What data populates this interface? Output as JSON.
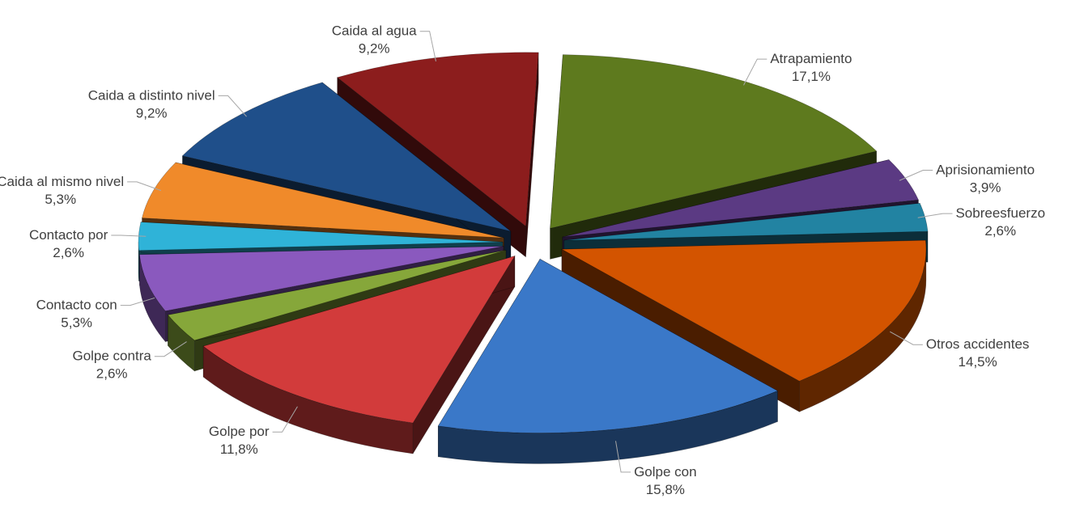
{
  "chart_data": {
    "type": "pie",
    "style": "3d-exploded",
    "legend": "none",
    "slices": [
      {
        "name": "Atrapamiento",
        "value": 17.1,
        "label": "17,1%",
        "color": "#5e7a1e"
      },
      {
        "name": "Aprisionamiento",
        "value": 3.9,
        "label": "3,9%",
        "color": "#5b3a83"
      },
      {
        "name": "Sobreesfuerzo",
        "value": 2.6,
        "label": "2,6%",
        "color": "#2283a2"
      },
      {
        "name": "Otros accidentes",
        "value": 14.5,
        "label": "14,5%",
        "color": "#d35400"
      },
      {
        "name": "Golpe con",
        "value": 15.8,
        "label": "15,8%",
        "color": "#3a78c8"
      },
      {
        "name": "Golpe por",
        "value": 11.8,
        "label": "11,8%",
        "color": "#d23b3b"
      },
      {
        "name": "Golpe contra",
        "value": 2.6,
        "label": "2,6%",
        "color": "#86a73a"
      },
      {
        "name": "Contacto con",
        "value": 5.3,
        "label": "5,3%",
        "color": "#8a59be"
      },
      {
        "name": "Contacto por",
        "value": 2.6,
        "label": "2,6%",
        "color": "#2fb3d8"
      },
      {
        "name": "Caida al mismo nivel",
        "value": 5.3,
        "label": "5,3%",
        "color": "#f08a2a"
      },
      {
        "name": "Caida a distinto nivel",
        "value": 9.2,
        "label": "9,2%",
        "color": "#1f4f8a"
      },
      {
        "name": "Caida al agua",
        "value": 9.2,
        "label": "9,2%",
        "color": "#8c1d1d"
      }
    ]
  }
}
